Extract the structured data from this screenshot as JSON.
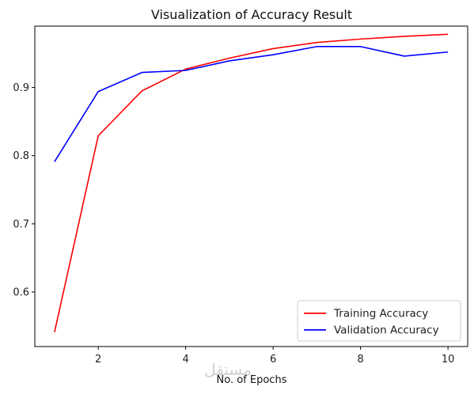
{
  "chart_data": {
    "type": "line",
    "title": "Visualization of Accuracy Result",
    "xlabel": "No. of Epochs",
    "ylabel": "",
    "x": [
      1,
      2,
      3,
      4,
      5,
      6,
      7,
      8,
      9,
      10
    ],
    "xlim": [
      0.55,
      10.45
    ],
    "ylim": [
      0.52,
      0.99
    ],
    "xticks": [
      2,
      4,
      6,
      8,
      10
    ],
    "yticks": [
      0.6,
      0.7,
      0.8,
      0.9
    ],
    "ytick_labels": [
      "0.6",
      "0.7",
      "0.8",
      "0.9"
    ],
    "xtick_labels": [
      "2",
      "4",
      "6",
      "8",
      "10"
    ],
    "grid": false,
    "legend_position": "lower-right",
    "series": [
      {
        "name": "Training Accuracy",
        "color": "#ff0000",
        "values": [
          0.541,
          0.829,
          0.895,
          0.927,
          0.943,
          0.957,
          0.966,
          0.971,
          0.975,
          0.978
        ]
      },
      {
        "name": "Validation Accuracy",
        "color": "#0000ff",
        "values": [
          0.791,
          0.894,
          0.922,
          0.925,
          0.939,
          0.948,
          0.96,
          0.96,
          0.946,
          0.952
        ]
      }
    ]
  },
  "watermark": {
    "text": "مستقل"
  }
}
